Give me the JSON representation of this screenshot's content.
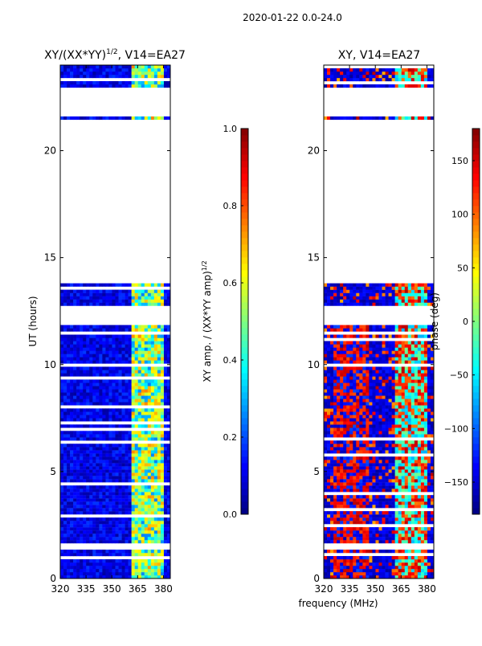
{
  "suptitle": "2020-01-22 0.0-24.0",
  "shared_xlabel": "frequency (MHz)",
  "colors": {
    "jet": [
      "#00007f",
      "#0000ff",
      "#007fff",
      "#00ffff",
      "#7fff7f",
      "#ffff00",
      "#ff7f00",
      "#ff0000",
      "#7f0000"
    ],
    "gap": "#ffffff",
    "frame": "#000000"
  },
  "chart_data": [
    {
      "type": "heatmap",
      "title_main": "XY/(XX*YY)",
      "title_sup": "1/2",
      "title_suffix": ", V14=EA27",
      "xlabel": "frequency (MHz)",
      "ylabel": "UT (hours)",
      "xlim": [
        320,
        384
      ],
      "ylim": [
        0,
        24
      ],
      "xticks": [
        320,
        335,
        350,
        365,
        380
      ],
      "xtick_labels": [
        "320",
        "335",
        "350",
        "365",
        "380"
      ],
      "yticks": [
        0,
        5,
        10,
        15,
        20
      ],
      "ytick_labels": [
        "0",
        "5",
        "10",
        "15",
        "20"
      ],
      "data_gaps_hours": [
        [
          1.4,
          1.7
        ],
        [
          13.8,
          15.0
        ],
        [
          15.0,
          21.3
        ],
        [
          21.6,
          23.0
        ],
        [
          11.9,
          12.8
        ],
        [
          9.9,
          10.0
        ]
      ],
      "colorbar": {
        "label_main": "XY amp. / (XX*YY amp)",
        "label_sup": "1/2",
        "vmin": 0.0,
        "vmax": 1.0,
        "ticks": [
          0.0,
          0.2,
          0.4,
          0.6,
          0.8,
          1.0
        ],
        "tick_labels": [
          "0.0",
          "0.2",
          "0.4",
          "0.6",
          "0.8",
          "1.0"
        ]
      }
    },
    {
      "type": "heatmap",
      "title": "XY, V14=EA27",
      "xlabel": "frequency (MHz)",
      "ylabel": "",
      "xlim": [
        320,
        384
      ],
      "ylim": [
        0,
        24
      ],
      "xticks": [
        320,
        335,
        350,
        365,
        380
      ],
      "xtick_labels": [
        "320",
        "335",
        "350",
        "365",
        "380"
      ],
      "yticks": [
        0,
        5,
        10,
        15,
        20
      ],
      "ytick_labels": [
        "0",
        "5",
        "10",
        "15",
        "20"
      ],
      "data_gaps_hours": [
        [
          1.4,
          1.7
        ],
        [
          13.8,
          15.0
        ],
        [
          15.0,
          21.3
        ],
        [
          21.6,
          23.0
        ],
        [
          11.9,
          12.8
        ],
        [
          9.9,
          10.0
        ]
      ],
      "colorbar": {
        "label": "phase (deg)",
        "vmin": -180,
        "vmax": 180,
        "ticks": [
          -150,
          -100,
          -50,
          0,
          50,
          100,
          150
        ],
        "tick_labels": [
          "−150",
          "−100",
          "−50",
          "0",
          "50",
          "100",
          "150"
        ]
      }
    }
  ]
}
